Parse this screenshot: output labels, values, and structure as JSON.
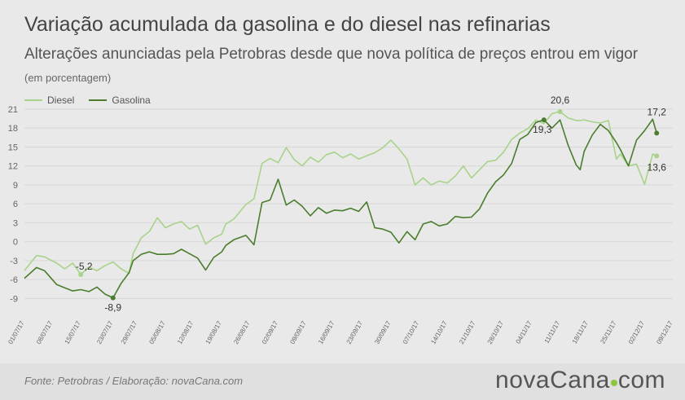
{
  "header": {
    "title": "Variação acumulada da gasolina e do diesel nas refinarias",
    "subtitle": "Alterações anunciadas pela Petrobras desde que nova política de preços entrou em vigor",
    "unit": "(em porcentagem)"
  },
  "footer": {
    "source": "Fonte:  Petrobras  / Elaboração:  novaCana.com",
    "logo_prefix": "nova",
    "logo_middle": "Cana",
    "logo_suffix": "com"
  },
  "colors": {
    "diesel": "#a8d38a",
    "gasolina": "#4b7d2e",
    "grid": "#d7d7d7",
    "axis_text": "#666666"
  },
  "chart_data": {
    "type": "line",
    "title": "Variação acumulada da gasolina e do diesel nas refinarias",
    "ylabel": "",
    "xlabel": "",
    "ylim": [
      -10.5,
      21
    ],
    "yticks": [
      21,
      18,
      15,
      12,
      9,
      6,
      3,
      0,
      -3,
      -6,
      -9
    ],
    "xlim": [
      0,
      157
    ],
    "xticks": [
      {
        "i": 0,
        "label": "01/07/17"
      },
      {
        "i": 7,
        "label": "08/07/17"
      },
      {
        "i": 14,
        "label": "15/07/17"
      },
      {
        "i": 22,
        "label": "23/07/17"
      },
      {
        "i": 28,
        "label": "29/07/17"
      },
      {
        "i": 35,
        "label": "05/08/17"
      },
      {
        "i": 42,
        "label": "12/08/17"
      },
      {
        "i": 49,
        "label": "19/08/17"
      },
      {
        "i": 56,
        "label": "26/08/17"
      },
      {
        "i": 63,
        "label": "02/09/17"
      },
      {
        "i": 70,
        "label": "09/09/17"
      },
      {
        "i": 77,
        "label": "16/09/17"
      },
      {
        "i": 84,
        "label": "23/09/17"
      },
      {
        "i": 91,
        "label": "30/09/17"
      },
      {
        "i": 98,
        "label": "07/10/17"
      },
      {
        "i": 105,
        "label": "14/10/17"
      },
      {
        "i": 112,
        "label": "21/10/17"
      },
      {
        "i": 119,
        "label": "28/10/17"
      },
      {
        "i": 126,
        "label": "04/11/17"
      },
      {
        "i": 133,
        "label": "11/11/17"
      },
      {
        "i": 140,
        "label": "18/11/17"
      },
      {
        "i": 147,
        "label": "25/11/17"
      },
      {
        "i": 154,
        "label": "02/12/17"
      },
      {
        "i": 161,
        "label": "09/12/17"
      }
    ],
    "series": [
      {
        "name": "Diesel",
        "x": [
          0,
          3,
          5,
          8,
          10,
          12,
          14,
          16,
          18,
          20,
          22,
          24,
          26,
          27,
          29,
          31,
          33,
          35,
          37,
          39,
          41,
          43,
          45,
          47,
          49,
          50,
          52,
          55,
          57,
          59,
          61,
          63,
          65,
          67,
          69,
          71,
          73,
          75,
          77,
          79,
          81,
          83,
          85,
          87,
          89,
          91,
          93,
          95,
          97,
          99,
          101,
          103,
          105,
          107,
          109,
          111,
          113,
          115,
          117,
          119,
          121,
          123,
          125,
          127,
          129,
          131,
          133,
          135,
          137,
          138,
          139,
          141,
          143,
          145,
          147,
          148,
          150,
          152,
          154,
          156,
          157
        ],
        "y": [
          -4.6,
          -2.2,
          -2.4,
          -3.4,
          -4.3,
          -3.4,
          -5.2,
          -4.0,
          -4.6,
          -3.8,
          -3.2,
          -4.3,
          -5.0,
          -1.9,
          0.6,
          1.6,
          3.8,
          2.2,
          2.8,
          3.2,
          2.0,
          2.6,
          -0.4,
          0.6,
          1.2,
          2.8,
          3.6,
          5.9,
          6.8,
          12.4,
          13.2,
          12.5,
          14.9,
          13.0,
          12.0,
          13.4,
          12.6,
          13.8,
          14.2,
          13.3,
          13.9,
          13.1,
          13.6,
          14.1,
          14.9,
          16.1,
          14.7,
          13.1,
          9.0,
          10.1,
          9.0,
          9.6,
          9.3,
          10.4,
          12.0,
          10.1,
          11.4,
          12.7,
          12.9,
          14.2,
          16.2,
          17.2,
          17.9,
          19.3,
          18.7,
          20.3,
          20.6,
          19.6,
          19.2,
          19.2,
          19.3,
          19.0,
          18.8,
          19.2,
          13.1,
          13.9,
          12.0,
          12.3,
          9.1,
          13.9,
          13.6
        ]
      },
      {
        "name": "Gasolina",
        "x": [
          0,
          3,
          5,
          8,
          10,
          12,
          14,
          16,
          18,
          20,
          22,
          24,
          26,
          27,
          29,
          31,
          33,
          35,
          37,
          39,
          41,
          43,
          45,
          47,
          49,
          50,
          52,
          55,
          57,
          59,
          61,
          63,
          65,
          67,
          69,
          71,
          73,
          75,
          77,
          79,
          81,
          83,
          85,
          87,
          89,
          91,
          93,
          95,
          97,
          99,
          101,
          103,
          105,
          107,
          109,
          111,
          113,
          115,
          117,
          119,
          121,
          123,
          125,
          127,
          129,
          131,
          133,
          135,
          137,
          138,
          139,
          141,
          143,
          145,
          147,
          148,
          150,
          152,
          154,
          156,
          157
        ],
        "y": [
          -5.8,
          -4.1,
          -4.6,
          -6.8,
          -7.3,
          -7.8,
          -7.6,
          -7.9,
          -7.2,
          -8.3,
          -8.9,
          -6.6,
          -4.9,
          -3.0,
          -2.0,
          -1.6,
          -2.0,
          -2.0,
          -1.9,
          -1.2,
          -1.9,
          -2.6,
          -4.5,
          -2.5,
          -1.6,
          -0.6,
          0.3,
          1.0,
          -0.5,
          6.2,
          6.6,
          9.9,
          5.8,
          6.6,
          5.6,
          4.1,
          5.4,
          4.5,
          5.0,
          4.9,
          5.3,
          4.8,
          6.3,
          2.2,
          2.0,
          1.5,
          -0.2,
          1.6,
          0.3,
          2.8,
          3.2,
          2.5,
          2.8,
          4.0,
          3.8,
          3.9,
          5.2,
          7.7,
          9.5,
          10.6,
          12.4,
          16.2,
          17.0,
          18.9,
          19.3,
          18.0,
          19.3,
          15.3,
          12.2,
          11.4,
          14.3,
          16.9,
          18.6,
          17.6,
          15.7,
          14.6,
          12.0,
          16.1,
          17.6,
          19.4,
          17.2
        ]
      }
    ],
    "annotations": [
      {
        "series": "Diesel",
        "x": 14,
        "y": -5.2,
        "text": "-5,2"
      },
      {
        "series": "Gasolina",
        "x": 22,
        "y": -8.9,
        "text": "-8,9"
      },
      {
        "series": "Gasolina",
        "x": 129,
        "y": 19.3,
        "text": "19,3"
      },
      {
        "series": "Diesel",
        "x": 133,
        "y": 20.6,
        "text": "20,6"
      },
      {
        "series": "Gasolina",
        "x": 157,
        "y": 17.2,
        "text": "17,2"
      },
      {
        "series": "Diesel",
        "x": 157,
        "y": 13.6,
        "text": "13,6"
      }
    ]
  }
}
